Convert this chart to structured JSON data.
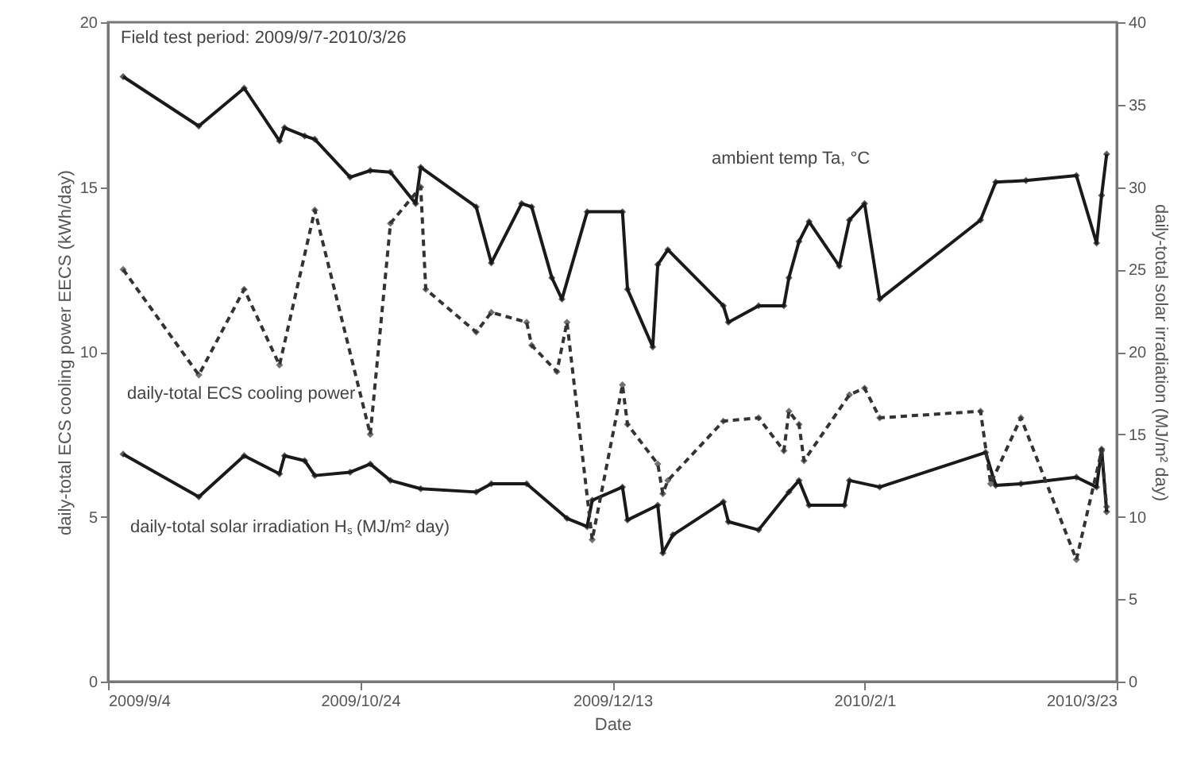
{
  "chart_data": {
    "type": "line",
    "xlabel": "Date",
    "ylabel": "daily-total ECS cooling power EECS (kWh/day)",
    "y2label": "daily-total solar irradiation (MJ/m² day)",
    "annotations": [
      "Field test period: 2009/9/7-2010/3/26"
    ],
    "xlim": [
      "2009-09-04",
      "2010-03-23"
    ],
    "xticks": [
      {
        "value": "2009-09-04",
        "label": "2009/9/4"
      },
      {
        "value": "2009-10-24",
        "label": "2009/10/24"
      },
      {
        "value": "2009-12-13",
        "label": "2009/12/13"
      },
      {
        "value": "2010-02-01",
        "label": "2010/2/1"
      },
      {
        "value": "2010-03-23",
        "label": "2010/3/23"
      }
    ],
    "ylim": [
      0,
      20
    ],
    "yticks": [
      0,
      5,
      10,
      15,
      20
    ],
    "y2lim": [
      0,
      40
    ],
    "y2ticks": [
      0,
      5,
      10,
      15,
      20,
      25,
      30,
      35,
      40
    ],
    "grid": false,
    "marker": "diamond",
    "series": [
      {
        "name": "daily-total ECS cooling power",
        "color": "#333333",
        "line_style": "dashed",
        "x": [
          "2009-09-07",
          "2009-09-22",
          "2009-10-01",
          "2009-10-08",
          "2009-10-15",
          "2009-10-26",
          "2009-10-30",
          "2009-11-05",
          "2009-11-06",
          "2009-11-16",
          "2009-11-19",
          "2009-11-26",
          "2009-11-27",
          "2009-12-02",
          "2009-12-04",
          "2009-12-09",
          "2009-12-15",
          "2009-12-16",
          "2009-12-22",
          "2009-12-23",
          "2009-12-24",
          "2010-01-04",
          "2010-01-11",
          "2010-01-16",
          "2010-01-17",
          "2010-01-19",
          "2010-01-20",
          "2010-01-29",
          "2010-02-01",
          "2010-02-04",
          "2010-02-24",
          "2010-02-26",
          "2010-03-04",
          "2010-03-15",
          "2010-03-20",
          "2010-03-21"
        ],
        "values": [
          12.5,
          9.3,
          11.9,
          9.6,
          14.3,
          7.5,
          13.9,
          15.0,
          11.9,
          10.6,
          11.2,
          10.9,
          10.2,
          9.4,
          10.9,
          4.3,
          9.0,
          7.8,
          6.6,
          5.7,
          6.1,
          7.9,
          8.0,
          7.0,
          8.2,
          7.8,
          6.7,
          8.7,
          8.9,
          8.0,
          8.2,
          6.0,
          8.0,
          3.7,
          7.0,
          5.3
        ]
      },
      {
        "name": "ambient temp Ta, °C",
        "color": "#1a1a1a",
        "line_style": "solid",
        "axis": "y2",
        "x": [
          "2009-09-07",
          "2009-09-22",
          "2009-10-01",
          "2009-10-08",
          "2009-10-09",
          "2009-10-13",
          "2009-10-15",
          "2009-10-22",
          "2009-10-26",
          "2009-10-30",
          "2009-11-04",
          "2009-11-05",
          "2009-11-16",
          "2009-11-19",
          "2009-11-25",
          "2009-11-27",
          "2009-12-01",
          "2009-12-03",
          "2009-12-08",
          "2009-12-15",
          "2009-12-16",
          "2009-12-21",
          "2009-12-22",
          "2009-12-24",
          "2010-01-04",
          "2010-01-05",
          "2010-01-11",
          "2010-01-16",
          "2010-01-17",
          "2010-01-19",
          "2010-01-21",
          "2010-01-27",
          "2010-01-29",
          "2010-02-01",
          "2010-02-04",
          "2010-02-24",
          "2010-02-27",
          "2010-03-05",
          "2010-03-15",
          "2010-03-19",
          "2010-03-20",
          "2010-03-21"
        ],
        "values": [
          36.7,
          33.7,
          36.0,
          32.8,
          33.6,
          33.1,
          32.9,
          30.6,
          31.0,
          30.9,
          29.0,
          31.2,
          28.8,
          25.4,
          29.0,
          28.8,
          24.5,
          23.2,
          28.5,
          28.5,
          23.8,
          20.3,
          25.3,
          26.2,
          22.8,
          21.8,
          22.8,
          22.8,
          24.5,
          26.7,
          27.9,
          25.2,
          28.0,
          29.0,
          23.2,
          28.0,
          30.3,
          30.4,
          30.7,
          26.6,
          29.5,
          32.0
        ]
      },
      {
        "name": "daily-total solar irradiation Hₛ (MJ/m² day)",
        "color": "#1a1a1a",
        "line_style": "solid",
        "axis": "y2",
        "x": [
          "2009-09-07",
          "2009-09-22",
          "2009-10-01",
          "2009-10-08",
          "2009-10-09",
          "2009-10-13",
          "2009-10-15",
          "2009-10-22",
          "2009-10-26",
          "2009-10-30",
          "2009-11-05",
          "2009-11-16",
          "2009-11-19",
          "2009-11-26",
          "2009-12-04",
          "2009-12-08",
          "2009-12-09",
          "2009-12-15",
          "2009-12-16",
          "2009-12-22",
          "2009-12-23",
          "2009-12-25",
          "2010-01-04",
          "2010-01-05",
          "2010-01-11",
          "2010-01-17",
          "2010-01-19",
          "2010-01-21",
          "2010-01-28",
          "2010-01-29",
          "2010-02-04",
          "2010-02-25",
          "2010-02-27",
          "2010-03-04",
          "2010-03-15",
          "2010-03-19",
          "2010-03-20",
          "2010-03-21"
        ],
        "values": [
          13.8,
          11.2,
          13.7,
          12.6,
          13.7,
          13.4,
          12.5,
          12.7,
          13.2,
          12.2,
          11.7,
          11.5,
          12.0,
          12.0,
          9.9,
          9.4,
          11.0,
          11.8,
          9.8,
          10.7,
          7.8,
          8.9,
          10.9,
          9.7,
          9.2,
          11.5,
          12.2,
          10.7,
          10.7,
          12.2,
          11.8,
          13.9,
          11.9,
          12.0,
          12.4,
          11.8,
          14.1,
          10.3
        ]
      }
    ]
  }
}
